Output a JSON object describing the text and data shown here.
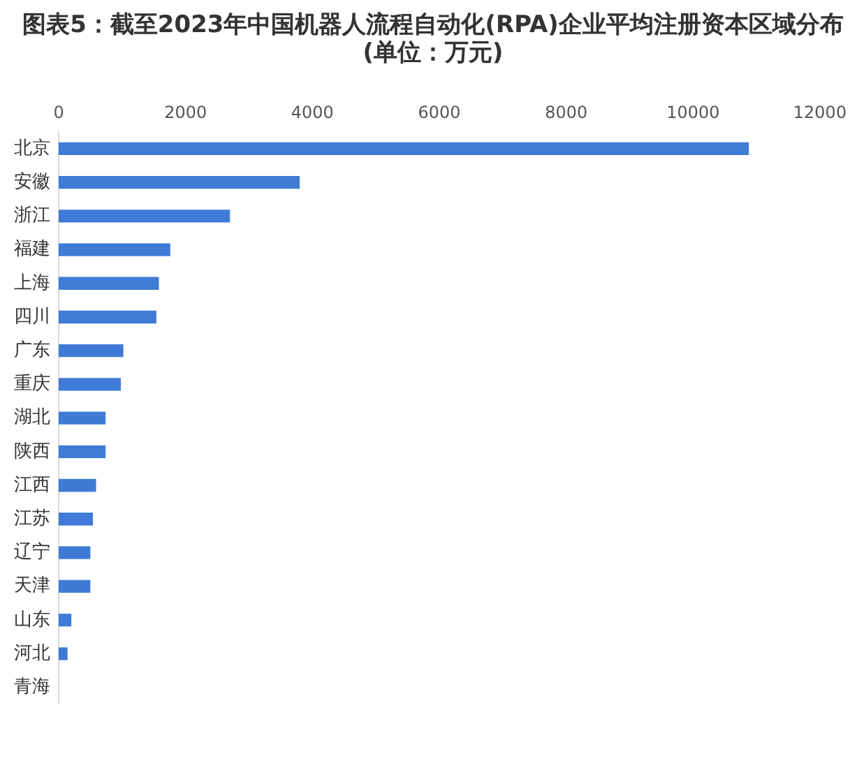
{
  "chart_data": {
    "type": "bar",
    "orientation": "horizontal",
    "title": "图表5：截至2023年中国机器人流程自动化(RPA)企业平均注册资本区域分布(单位：万元)",
    "categories": [
      "北京",
      "安徽",
      "浙江",
      "福建",
      "上海",
      "四川",
      "广东",
      "重庆",
      "湖北",
      "陕西",
      "江西",
      "江苏",
      "辽宁",
      "天津",
      "山东",
      "河北",
      "青海"
    ],
    "values": [
      10880,
      3800,
      2700,
      1760,
      1580,
      1540,
      1020,
      980,
      740,
      740,
      590,
      540,
      500,
      500,
      200,
      140,
      0
    ],
    "color": "#3f7bd6",
    "xlim": [
      0,
      12000
    ],
    "xticks": [
      0,
      2000,
      4000,
      6000,
      8000,
      10000,
      12000
    ],
    "grid": false,
    "legend": false
  }
}
